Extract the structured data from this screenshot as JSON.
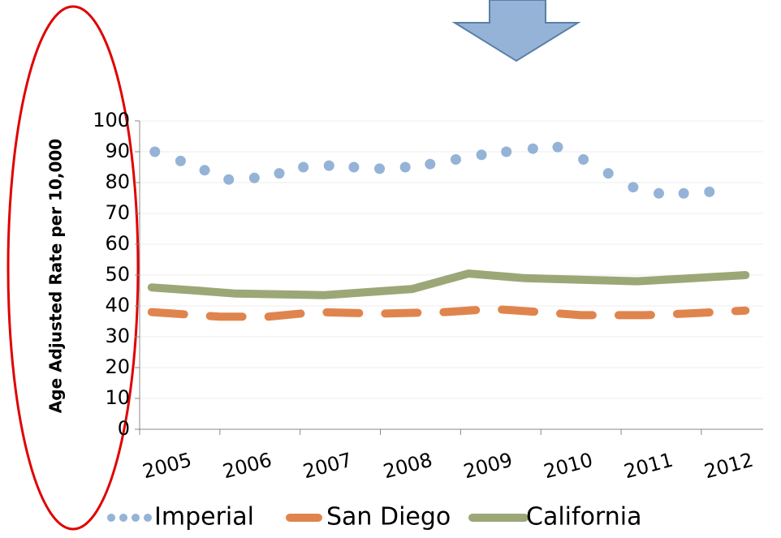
{
  "chart_data": {
    "type": "line",
    "y_label": "Age Adjusted Rate per 10,000",
    "xlim": [
      2005,
      2012.77
    ],
    "xticks": [
      2005,
      2006,
      2007,
      2008,
      2009,
      2010,
      2011,
      2012
    ],
    "ylim": [
      0,
      100
    ],
    "yticks": [
      0,
      10,
      20,
      30,
      40,
      50,
      60,
      70,
      80,
      90,
      100
    ],
    "grid": true,
    "legend": "bottom",
    "series": [
      {
        "name": "Imperial",
        "color": "#95b3d7",
        "style": "dotted",
        "x": [
          2005.19,
          2005.51,
          2005.81,
          2006.11,
          2006.43,
          2006.74,
          2007.04,
          2007.36,
          2007.67,
          2007.99,
          2008.31,
          2008.62,
          2008.94,
          2009.26,
          2009.57,
          2009.9,
          2010.21,
          2010.53,
          2010.84,
          2011.15,
          2011.47,
          2011.78,
          2012.1
        ],
        "values": [
          90,
          87,
          84,
          81,
          81.5,
          83,
          85,
          85.5,
          85,
          84.5,
          85,
          86,
          87.5,
          89,
          90,
          91,
          91.5,
          87.5,
          83,
          78.5,
          76.5,
          76.5,
          77
        ]
      },
      {
        "name": "San Diego",
        "color": "#e0844e",
        "style": "dashed",
        "x": [
          2005.15,
          2006,
          2006.6,
          2007.2,
          2008,
          2008.8,
          2009.4,
          2010,
          2010.5,
          2011.3,
          2011.8,
          2012.55
        ],
        "values": [
          38,
          36.5,
          36.5,
          38,
          37.5,
          38,
          39,
          38,
          37,
          37,
          37.5,
          38.5
        ]
      },
      {
        "name": "California",
        "color": "#9ca777",
        "style": "solid",
        "x": [
          2005.15,
          2005.7,
          2006.2,
          2007.3,
          2008.4,
          2009.1,
          2009.8,
          2010.5,
          2011.2,
          2011.9,
          2012.55
        ],
        "values": [
          46,
          45,
          44,
          43.5,
          45.5,
          50.5,
          49,
          48.5,
          48,
          49,
          50
        ]
      }
    ]
  }
}
